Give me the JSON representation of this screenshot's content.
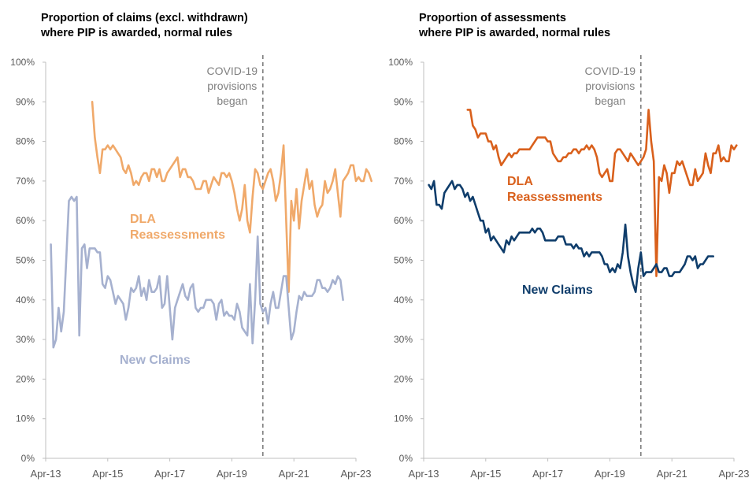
{
  "charts": [
    {
      "title_line1": "Proportion of claims (excl. withdrawn)",
      "title_line2": "where PIP is awarded, normal rules",
      "covid_label": [
        "COVID-19",
        "provisions",
        "began"
      ]
    },
    {
      "title_line1": "Proportion of assessments",
      "title_line2": "where PIP is awarded, normal rules",
      "covid_label": [
        "COVID-19",
        "provisions",
        "began"
      ]
    }
  ],
  "colors": {
    "left_dla": "#F0A96A",
    "left_new": "#A6B1CF",
    "right_dla": "#D9601C",
    "right_new": "#0F3D6B",
    "axis": "#BFBFBF",
    "covid_line": "#7F7F7F",
    "tick_text": "#595959"
  },
  "chart_data": [
    {
      "type": "line",
      "title": "Proportion of claims (excl. withdrawn) where PIP is awarded, normal rules",
      "y_ticks": [
        "0%",
        "10%",
        "20%",
        "30%",
        "40%",
        "50%",
        "60%",
        "70%",
        "80%",
        "90%",
        "100%"
      ],
      "x_ticks": [
        "Apr-13",
        "Apr-15",
        "Apr-17",
        "Apr-19",
        "Apr-21",
        "Apr-23"
      ],
      "ylim": [
        0,
        100
      ],
      "covid_marker": "Apr-20",
      "series": [
        {
          "name": "DLA Reassessments",
          "color_key": "left_dla",
          "start": "Oct-14",
          "values": [
            90,
            81,
            76,
            72,
            78,
            78,
            79,
            78,
            79,
            78,
            77,
            76,
            73,
            72,
            74,
            72,
            69,
            70,
            69,
            71,
            72,
            72,
            70,
            73,
            73,
            71,
            73,
            70,
            70,
            72,
            73,
            74,
            75,
            76,
            71,
            73,
            73,
            71,
            71,
            70,
            68,
            68,
            68,
            70,
            70,
            67,
            69,
            71,
            70,
            69,
            72,
            72,
            71,
            72,
            70,
            67,
            63,
            60,
            63,
            69,
            60,
            57,
            66,
            73,
            72,
            69,
            68,
            70,
            72,
            73,
            70,
            65,
            67,
            72,
            79,
            60,
            42,
            65,
            60,
            68,
            58,
            65,
            69,
            73,
            68,
            70,
            64,
            61,
            63,
            64,
            70,
            67,
            68,
            70,
            73,
            67,
            61,
            70,
            71,
            72,
            74,
            74,
            70,
            71,
            70,
            70,
            73,
            72,
            70
          ]
        },
        {
          "name": "New Claims",
          "color_key": "left_new",
          "start": "Jun-13",
          "values": [
            54,
            28,
            30,
            38,
            32,
            37,
            51,
            65,
            66,
            65,
            66,
            31,
            53,
            54,
            48,
            53,
            53,
            53,
            52,
            52,
            44,
            43,
            46,
            45,
            42,
            39,
            41,
            40,
            39,
            35,
            38,
            43,
            42,
            43,
            46,
            41,
            43,
            40,
            45,
            42,
            42,
            43,
            46,
            38,
            39,
            46,
            38,
            30,
            38,
            40,
            42,
            44,
            41,
            40,
            43,
            44,
            38,
            37,
            38,
            38,
            40,
            40,
            40,
            39,
            35,
            39,
            40,
            36,
            37,
            36,
            36,
            35,
            39,
            37,
            33,
            32,
            31,
            44,
            29,
            40,
            56,
            39,
            37,
            38,
            34,
            39,
            42,
            38,
            38,
            42,
            46,
            46,
            38,
            30,
            32,
            37,
            41,
            40,
            42,
            41,
            41,
            41,
            42,
            45,
            45,
            43,
            43,
            42,
            43,
            45,
            44,
            46,
            45,
            40
          ]
        }
      ]
    },
    {
      "type": "line",
      "title": "Proportion of assessments where PIP is awarded, normal rules",
      "y_ticks": [
        "0%",
        "10%",
        "20%",
        "30%",
        "40%",
        "50%",
        "60%",
        "70%",
        "80%",
        "90%",
        "100%"
      ],
      "x_ticks": [
        "Apr-13",
        "Apr-15",
        "Apr-17",
        "Apr-19",
        "Apr-21",
        "Apr-23"
      ],
      "ylim": [
        0,
        100
      ],
      "covid_marker": "Apr-20",
      "series": [
        {
          "name": "DLA Reassessments",
          "color_key": "right_dla",
          "start": "Sep-14",
          "values": [
            88,
            88,
            84,
            83,
            81,
            82,
            82,
            82,
            80,
            80,
            78,
            79,
            76,
            74,
            75,
            76,
            77,
            76,
            77,
            77,
            78,
            78,
            78,
            78,
            78,
            79,
            80,
            81,
            81,
            81,
            81,
            80,
            80,
            77,
            76,
            75,
            75,
            76,
            76,
            77,
            77,
            78,
            78,
            77,
            78,
            78,
            79,
            78,
            79,
            78,
            76,
            72,
            71,
            72,
            73,
            70,
            70,
            77,
            78,
            78,
            77,
            76,
            75,
            77,
            76,
            75,
            74,
            75,
            76,
            78,
            88,
            80,
            75,
            46,
            71,
            70,
            74,
            72,
            67,
            72,
            72,
            75,
            74,
            75,
            73,
            71,
            69,
            69,
            73,
            70,
            71,
            72,
            77,
            74,
            72,
            77,
            77,
            79,
            75,
            76,
            75,
            75,
            79,
            78,
            79
          ]
        },
        {
          "name": "New Claims",
          "color_key": "right_new",
          "start": "Jun-13",
          "values": [
            69,
            68,
            70,
            64,
            64,
            63,
            67,
            68,
            69,
            70,
            68,
            69,
            69,
            68,
            66,
            67,
            65,
            66,
            64,
            62,
            60,
            60,
            57,
            58,
            55,
            56,
            55,
            54,
            53,
            52,
            55,
            54,
            56,
            55,
            56,
            57,
            57,
            57,
            57,
            57,
            58,
            57,
            58,
            58,
            57,
            55,
            55,
            55,
            55,
            55,
            56,
            56,
            56,
            54,
            54,
            54,
            53,
            54,
            53,
            53,
            51,
            52,
            51,
            52,
            52,
            52,
            52,
            51,
            49,
            49,
            47,
            48,
            47,
            49,
            48,
            52,
            59,
            51,
            47,
            44,
            42,
            48,
            52,
            46,
            47,
            47,
            47,
            48,
            49,
            47,
            47,
            48,
            48,
            46,
            46,
            47,
            47,
            47,
            48,
            49,
            51,
            51,
            50,
            51,
            48,
            49,
            49,
            50,
            51,
            51,
            51
          ]
        }
      ]
    }
  ],
  "series_labels": {
    "left_dla": [
      "DLA",
      "Reassessments"
    ],
    "left_new": [
      "New Claims"
    ],
    "right_dla": [
      "DLA",
      "Reassessments"
    ],
    "right_new": [
      "New Claims"
    ]
  }
}
